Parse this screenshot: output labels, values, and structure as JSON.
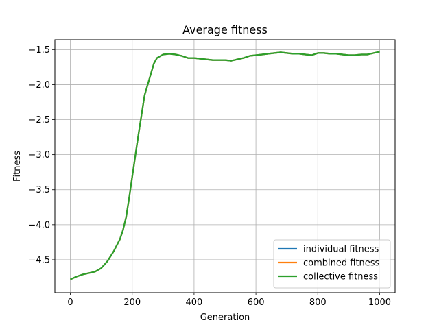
{
  "chart_data": {
    "type": "line",
    "title": "Average fitness",
    "xlabel": "Generation",
    "ylabel": "Fitness",
    "xlim": [
      -50,
      1050
    ],
    "ylim": [
      -4.97,
      -1.36
    ],
    "xticks": [
      0,
      200,
      400,
      600,
      800,
      1000
    ],
    "yticks": [
      -4.5,
      -4.0,
      -3.5,
      -3.0,
      -2.5,
      -2.0,
      -1.5
    ],
    "xtick_labels": [
      "0",
      "200",
      "400",
      "600",
      "800",
      "1000"
    ],
    "ytick_labels": [
      "−4.5",
      "−4.0",
      "−3.5",
      "−3.0",
      "−2.5",
      "−2.0",
      "−1.5"
    ],
    "grid": true,
    "legend_position": "lower-right",
    "x": [
      0,
      10,
      20,
      40,
      60,
      80,
      100,
      120,
      140,
      160,
      170,
      180,
      190,
      200,
      220,
      240,
      260,
      270,
      280,
      300,
      320,
      340,
      360,
      380,
      400,
      420,
      440,
      460,
      480,
      500,
      520,
      540,
      560,
      580,
      600,
      620,
      640,
      660,
      680,
      700,
      720,
      740,
      760,
      780,
      800,
      820,
      840,
      860,
      880,
      900,
      920,
      940,
      960,
      980,
      1000
    ],
    "series": [
      {
        "name": "individual fitness",
        "color": "#1f77b4",
        "values": [
          -4.78,
          -4.76,
          -4.74,
          -4.71,
          -4.69,
          -4.67,
          -4.62,
          -4.52,
          -4.38,
          -4.21,
          -4.08,
          -3.9,
          -3.62,
          -3.32,
          -2.72,
          -2.15,
          -1.85,
          -1.7,
          -1.62,
          -1.57,
          -1.56,
          -1.57,
          -1.59,
          -1.62,
          -1.62,
          -1.63,
          -1.64,
          -1.65,
          -1.65,
          -1.65,
          -1.66,
          -1.64,
          -1.62,
          -1.59,
          -1.58,
          -1.57,
          -1.56,
          -1.55,
          -1.54,
          -1.55,
          -1.56,
          -1.56,
          -1.57,
          -1.58,
          -1.55,
          -1.55,
          -1.56,
          -1.56,
          -1.57,
          -1.58,
          -1.58,
          -1.57,
          -1.57,
          -1.55,
          -1.53
        ]
      },
      {
        "name": "combined fitness",
        "color": "#ff7f0e",
        "values": [
          -4.78,
          -4.76,
          -4.74,
          -4.71,
          -4.69,
          -4.67,
          -4.62,
          -4.52,
          -4.38,
          -4.21,
          -4.08,
          -3.9,
          -3.62,
          -3.32,
          -2.72,
          -2.15,
          -1.85,
          -1.7,
          -1.62,
          -1.57,
          -1.56,
          -1.57,
          -1.59,
          -1.62,
          -1.62,
          -1.63,
          -1.64,
          -1.65,
          -1.65,
          -1.65,
          -1.66,
          -1.64,
          -1.62,
          -1.59,
          -1.58,
          -1.57,
          -1.56,
          -1.55,
          -1.54,
          -1.55,
          -1.56,
          -1.56,
          -1.57,
          -1.58,
          -1.55,
          -1.55,
          -1.56,
          -1.56,
          -1.57,
          -1.58,
          -1.58,
          -1.57,
          -1.57,
          -1.55,
          -1.53
        ]
      },
      {
        "name": "collective fitness",
        "color": "#2ca02c",
        "values": [
          -4.78,
          -4.76,
          -4.74,
          -4.71,
          -4.69,
          -4.67,
          -4.62,
          -4.52,
          -4.38,
          -4.21,
          -4.08,
          -3.9,
          -3.62,
          -3.32,
          -2.72,
          -2.15,
          -1.85,
          -1.7,
          -1.62,
          -1.57,
          -1.56,
          -1.57,
          -1.59,
          -1.62,
          -1.62,
          -1.63,
          -1.64,
          -1.65,
          -1.65,
          -1.65,
          -1.66,
          -1.64,
          -1.62,
          -1.59,
          -1.58,
          -1.57,
          -1.56,
          -1.55,
          -1.54,
          -1.55,
          -1.56,
          -1.56,
          -1.57,
          -1.58,
          -1.55,
          -1.55,
          -1.56,
          -1.56,
          -1.57,
          -1.58,
          -1.58,
          -1.57,
          -1.57,
          -1.55,
          -1.53
        ]
      }
    ]
  }
}
